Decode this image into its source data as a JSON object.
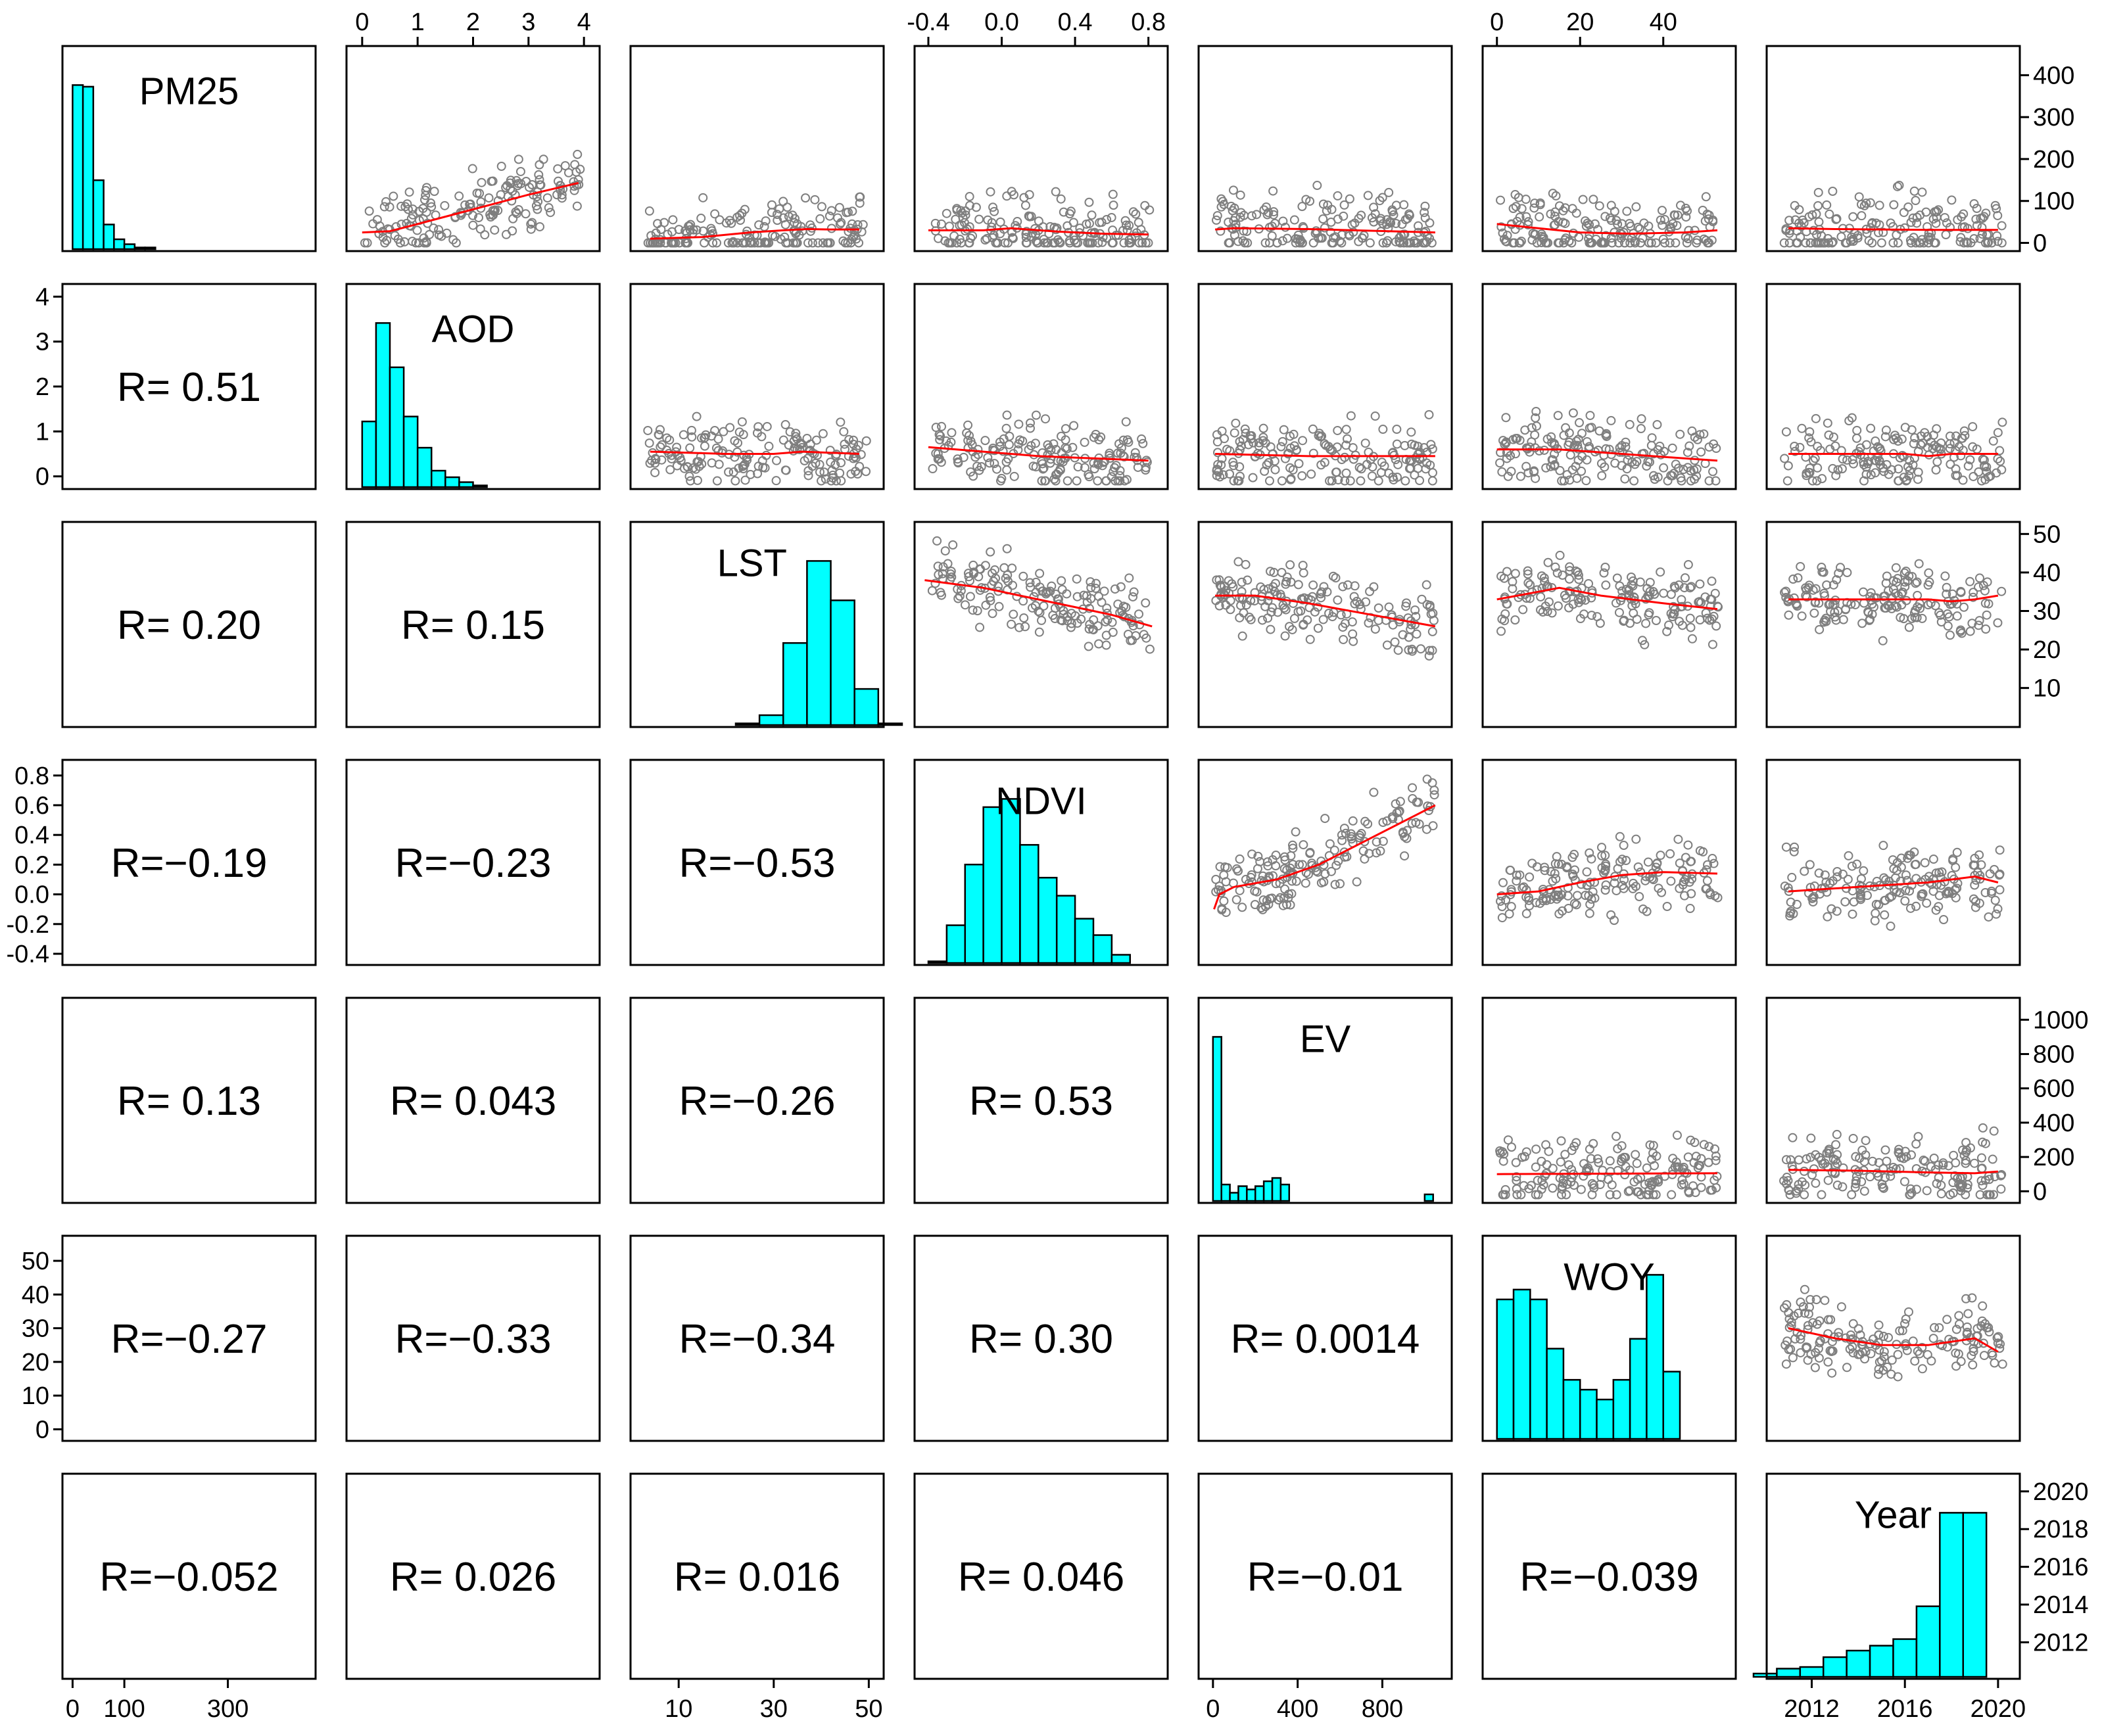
{
  "chart_data": {
    "type": "scatter-matrix",
    "variables": [
      "PM25",
      "AOD",
      "LST",
      "NDVI",
      "EV",
      "WOY",
      "Year"
    ],
    "correlations": [
      {
        "row": "AOD",
        "col": "PM25",
        "text": "R= 0.51"
      },
      {
        "row": "LST",
        "col": "PM25",
        "text": "R= 0.20"
      },
      {
        "row": "LST",
        "col": "AOD",
        "text": "R= 0.15"
      },
      {
        "row": "NDVI",
        "col": "PM25",
        "text": "R=−0.19"
      },
      {
        "row": "NDVI",
        "col": "AOD",
        "text": "R=−0.23"
      },
      {
        "row": "NDVI",
        "col": "LST",
        "text": "R=−0.53"
      },
      {
        "row": "EV",
        "col": "PM25",
        "text": "R= 0.13"
      },
      {
        "row": "EV",
        "col": "AOD",
        "text": "R= 0.043"
      },
      {
        "row": "EV",
        "col": "LST",
        "text": "R=−0.26"
      },
      {
        "row": "EV",
        "col": "NDVI",
        "text": "R= 0.53"
      },
      {
        "row": "WOY",
        "col": "PM25",
        "text": "R=−0.27"
      },
      {
        "row": "WOY",
        "col": "AOD",
        "text": "R=−0.33"
      },
      {
        "row": "WOY",
        "col": "LST",
        "text": "R=−0.34"
      },
      {
        "row": "WOY",
        "col": "NDVI",
        "text": "R= 0.30"
      },
      {
        "row": "WOY",
        "col": "EV",
        "text": "R= 0.0014"
      },
      {
        "row": "Year",
        "col": "PM25",
        "text": "R=−0.052"
      },
      {
        "row": "Year",
        "col": "AOD",
        "text": "R= 0.026"
      },
      {
        "row": "Year",
        "col": "LST",
        "text": "R= 0.016"
      },
      {
        "row": "Year",
        "col": "NDVI",
        "text": "R= 0.046"
      },
      {
        "row": "Year",
        "col": "EV",
        "text": "R=−0.01"
      },
      {
        "row": "Year",
        "col": "WOY",
        "text": "R=−0.039"
      }
    ],
    "histograms": {
      "PM25": {
        "bin_width": 20,
        "range": [
          0,
          450
        ],
        "counts": [
          100,
          99,
          42,
          15,
          6,
          3,
          1,
          1,
          0,
          0,
          0,
          0
        ]
      },
      "AOD": {
        "bin_width": 0.25,
        "range": [
          0,
          4
        ],
        "counts": [
          40,
          100,
          73,
          43,
          24,
          10,
          6,
          3,
          1,
          0,
          0,
          0,
          0,
          0,
          0,
          0
        ]
      },
      "LST": {
        "bin_width": 5,
        "range": [
          2,
          52
        ],
        "counts": [
          0,
          0,
          0,
          0,
          1,
          6,
          50,
          100,
          76,
          22,
          1
        ]
      },
      "NDVI": {
        "bin_width": 0.1,
        "range": [
          -0.4,
          0.85
        ],
        "counts": [
          1,
          23,
          60,
          95,
          100,
          72,
          52,
          41,
          27,
          17,
          5,
          0
        ]
      },
      "EV": {
        "bin_width": 40,
        "range": [
          0,
          1080
        ],
        "counts": [
          100,
          10,
          5,
          9,
          7,
          9,
          12,
          14,
          10,
          0,
          0,
          0,
          0,
          0,
          0,
          0,
          0,
          0,
          0,
          0,
          0,
          0,
          0,
          0,
          0,
          4
        ]
      },
      "WOY": {
        "bin_width": 4,
        "range": [
          0,
          52
        ],
        "counts": [
          85,
          91,
          85,
          55,
          36,
          30,
          24,
          36,
          61,
          100,
          41
        ]
      },
      "Year": {
        "values": [
          2010,
          2011,
          2012,
          2013,
          2014,
          2015,
          2016,
          2017,
          2018,
          2019,
          2020
        ],
        "counts": [
          2,
          5,
          6,
          12,
          16,
          19,
          23,
          43,
          100,
          100,
          0
        ]
      }
    },
    "axes": {
      "PM25": {
        "range": [
          0,
          450
        ],
        "ticks": [
          "0",
          "100",
          "300",
          "400",
          "300",
          "200",
          "100",
          "0"
        ],
        "tick_values": [
          0,
          100,
          300,
          400,
          300,
          200,
          100,
          0
        ]
      },
      "AOD": {
        "range": [
          -0.1,
          4.1
        ],
        "ticks": [
          "0",
          "1",
          "2",
          "3",
          "4"
        ],
        "tick_values": [
          0,
          1,
          2,
          3,
          4
        ]
      },
      "LST": {
        "range": [
          2,
          51
        ],
        "ticks": [
          "10",
          "30",
          "50",
          "20",
          "40"
        ],
        "tick_values": [
          10,
          30,
          50,
          20,
          40
        ]
      },
      "NDVI": {
        "range": [
          -0.42,
          0.85
        ],
        "ticks": [
          "-0.4",
          "0.0",
          "0.4",
          "0.8",
          "-0.2",
          "0.2",
          "0.6"
        ],
        "tick_values": [
          -0.4,
          0.0,
          0.4,
          0.8,
          -0.2,
          0.2,
          0.6
        ]
      },
      "EV": {
        "range": [
          -20,
          1080
        ],
        "ticks": [
          "0",
          "400",
          "800",
          "200",
          "600",
          "1000"
        ],
        "tick_values": [
          0,
          400,
          800,
          200,
          600,
          1000
        ]
      },
      "WOY": {
        "range": [
          -1,
          55
        ],
        "ticks": [
          "0",
          "20",
          "40",
          "10",
          "30",
          "50"
        ],
        "tick_values": [
          0,
          20,
          40,
          10,
          30,
          50
        ]
      },
      "Year": {
        "range": [
          2010.5,
          2020.5
        ],
        "ticks": [
          "2012",
          "2016",
          "2020",
          "2014",
          "2018"
        ],
        "tick_values": [
          2012,
          2016,
          2020,
          2014,
          2018
        ]
      }
    },
    "tick_groups": [
      {
        "where": "top",
        "var": "AOD",
        "labels": [
          "0",
          "1",
          "2",
          "3",
          "4"
        ],
        "values": [
          0,
          1,
          2,
          3,
          4
        ]
      },
      {
        "where": "top",
        "var": "NDVI",
        "labels": [
          "-0.4",
          "0.0",
          "0.4",
          "0.8"
        ],
        "values": [
          -0.4,
          0.0,
          0.4,
          0.8
        ]
      },
      {
        "where": "top",
        "var": "WOY",
        "labels": [
          "0",
          "20",
          "40"
        ],
        "values": [
          0,
          20,
          40
        ]
      },
      {
        "where": "bottom",
        "var": "PM25",
        "labels": [
          "0",
          "100",
          "300"
        ],
        "values": [
          0,
          100,
          300
        ]
      },
      {
        "where": "bottom",
        "var": "LST",
        "labels": [
          "10",
          "30",
          "50"
        ],
        "values": [
          10,
          30,
          50
        ]
      },
      {
        "where": "bottom",
        "var": "EV",
        "labels": [
          "0",
          "400",
          "800"
        ],
        "values": [
          0,
          400,
          800
        ]
      },
      {
        "where": "bottom",
        "var": "Year",
        "labels": [
          "2012",
          "2016",
          "2020"
        ],
        "values": [
          2012,
          2016,
          2020
        ]
      },
      {
        "where": "left",
        "var": "AOD",
        "labels": [
          "0",
          "1",
          "2",
          "3",
          "4"
        ],
        "values": [
          0,
          1,
          2,
          3,
          4
        ]
      },
      {
        "where": "left",
        "var": "NDVI",
        "labels": [
          "-0.4",
          "-0.2",
          "0.0",
          "0.2",
          "0.4",
          "0.6",
          "0.8"
        ],
        "values": [
          -0.4,
          -0.2,
          0.0,
          0.2,
          0.4,
          0.6,
          0.8
        ]
      },
      {
        "where": "left",
        "var": "WOY",
        "labels": [
          "0",
          "10",
          "20",
          "30",
          "40",
          "50"
        ],
        "values": [
          0,
          10,
          20,
          30,
          40,
          50
        ]
      },
      {
        "where": "right",
        "var": "PM25",
        "labels": [
          "0",
          "100",
          "200",
          "300",
          "400"
        ],
        "values": [
          0,
          100,
          200,
          300,
          400
        ]
      },
      {
        "where": "right",
        "var": "LST",
        "labels": [
          "10",
          "20",
          "30",
          "40",
          "50"
        ],
        "values": [
          10,
          20,
          30,
          40,
          50
        ]
      },
      {
        "where": "right",
        "var": "EV",
        "labels": [
          "0",
          "200",
          "400",
          "600",
          "800",
          "1000"
        ],
        "values": [
          0,
          200,
          400,
          600,
          800,
          1000
        ]
      },
      {
        "where": "right",
        "var": "Year",
        "labels": [
          "2012",
          "2014",
          "2016",
          "2018",
          "2020"
        ],
        "values": [
          2012,
          2014,
          2016,
          2018,
          2020
        ]
      }
    ],
    "smoothers": [
      {
        "x": "AOD",
        "y": "PM25",
        "points": [
          [
            0,
            25
          ],
          [
            0.5,
            28
          ],
          [
            1,
            45
          ],
          [
            2,
            80
          ],
          [
            3,
            115
          ],
          [
            3.9,
            143
          ]
        ]
      },
      {
        "x": "LST",
        "y": "PM25",
        "points": [
          [
            4,
            10
          ],
          [
            15,
            14
          ],
          [
            25,
            25
          ],
          [
            32,
            30
          ],
          [
            37,
            33
          ],
          [
            42,
            32
          ],
          [
            48,
            32
          ]
        ]
      },
      {
        "x": "NDVI",
        "y": "PM25",
        "points": [
          [
            -0.4,
            30
          ],
          [
            -0.1,
            30
          ],
          [
            0.05,
            35
          ],
          [
            0.3,
            27
          ],
          [
            0.55,
            22
          ],
          [
            0.8,
            20
          ]
        ]
      },
      {
        "x": "EV",
        "y": "PM25",
        "points": [
          [
            10,
            32
          ],
          [
            100,
            35
          ],
          [
            450,
            33
          ],
          [
            1050,
            25
          ]
        ]
      },
      {
        "x": "WOY",
        "y": "PM25",
        "points": [
          [
            0,
            45
          ],
          [
            10,
            35
          ],
          [
            20,
            25
          ],
          [
            32,
            22
          ],
          [
            45,
            25
          ],
          [
            53,
            30
          ]
        ]
      },
      {
        "x": "Year",
        "y": "PM25",
        "points": [
          [
            2011,
            35
          ],
          [
            2013,
            33
          ],
          [
            2015,
            32
          ],
          [
            2017,
            31
          ],
          [
            2019,
            31
          ],
          [
            2020,
            31
          ]
        ]
      },
      {
        "x": "LST",
        "y": "AOD",
        "points": [
          [
            4,
            0.55
          ],
          [
            20,
            0.5
          ],
          [
            30,
            0.5
          ],
          [
            36,
            0.55
          ],
          [
            48,
            0.5
          ]
        ]
      },
      {
        "x": "NDVI",
        "y": "AOD",
        "points": [
          [
            -0.4,
            0.65
          ],
          [
            -0.1,
            0.55
          ],
          [
            0.2,
            0.45
          ],
          [
            0.5,
            0.4
          ],
          [
            0.8,
            0.35
          ]
        ]
      },
      {
        "x": "EV",
        "y": "AOD",
        "points": [
          [
            10,
            0.5
          ],
          [
            450,
            0.45
          ],
          [
            1050,
            0.45
          ]
        ]
      },
      {
        "x": "WOY",
        "y": "AOD",
        "points": [
          [
            0,
            0.6
          ],
          [
            15,
            0.6
          ],
          [
            30,
            0.5
          ],
          [
            45,
            0.4
          ],
          [
            53,
            0.35
          ]
        ]
      },
      {
        "x": "Year",
        "y": "AOD",
        "points": [
          [
            2011,
            0.5
          ],
          [
            2016,
            0.5
          ],
          [
            2017,
            0.45
          ],
          [
            2018,
            0.5
          ],
          [
            2020,
            0.5
          ]
        ]
      },
      {
        "x": "NDVI",
        "y": "LST",
        "points": [
          [
            -0.42,
            38
          ],
          [
            -0.1,
            36
          ],
          [
            0.1,
            34
          ],
          [
            0.4,
            31
          ],
          [
            0.6,
            29
          ],
          [
            0.82,
            26
          ]
        ]
      },
      {
        "x": "EV",
        "y": "LST",
        "points": [
          [
            10,
            34
          ],
          [
            200,
            34
          ],
          [
            450,
            32
          ],
          [
            1050,
            26
          ]
        ]
      },
      {
        "x": "WOY",
        "y": "LST",
        "points": [
          [
            0,
            33
          ],
          [
            10,
            35
          ],
          [
            15,
            36
          ],
          [
            25,
            34
          ],
          [
            40,
            32
          ],
          [
            53,
            30.5
          ]
        ]
      },
      {
        "x": "Year",
        "y": "LST",
        "points": [
          [
            2011,
            33
          ],
          [
            2017,
            33
          ],
          [
            2018,
            32.5
          ],
          [
            2019,
            33
          ],
          [
            2020,
            34
          ]
        ]
      },
      {
        "x": "EV",
        "y": "NDVI",
        "points": [
          [
            5,
            -0.1
          ],
          [
            30,
            0.0
          ],
          [
            100,
            0.05
          ],
          [
            300,
            0.1
          ],
          [
            500,
            0.2
          ],
          [
            1050,
            0.6
          ]
        ]
      },
      {
        "x": "WOY",
        "y": "NDVI",
        "points": [
          [
            0,
            0.0
          ],
          [
            10,
            0.02
          ],
          [
            20,
            0.08
          ],
          [
            30,
            0.13
          ],
          [
            40,
            0.15
          ],
          [
            53,
            0.14
          ]
        ]
      },
      {
        "x": "Year",
        "y": "NDVI",
        "points": [
          [
            2011,
            0.02
          ],
          [
            2014,
            0.05
          ],
          [
            2017,
            0.08
          ],
          [
            2019,
            0.12
          ],
          [
            2020,
            0.08
          ]
        ]
      },
      {
        "x": "WOY",
        "y": "EV",
        "points": [
          [
            0,
            100
          ],
          [
            53,
            105
          ]
        ]
      },
      {
        "x": "Year",
        "y": "EV",
        "points": [
          [
            2011,
            125
          ],
          [
            2014,
            120
          ],
          [
            2017,
            110
          ],
          [
            2019,
            105
          ],
          [
            2020,
            115
          ]
        ]
      },
      {
        "x": "Year",
        "y": "WOY",
        "points": [
          [
            2011,
            30
          ],
          [
            2013,
            27
          ],
          [
            2015,
            25
          ],
          [
            2017,
            25
          ],
          [
            2019,
            27
          ],
          [
            2020,
            23
          ]
        ]
      }
    ],
    "point_color": "#7f7f7f",
    "line_color": "#ff0000",
    "bar_color": "#00ffff"
  }
}
